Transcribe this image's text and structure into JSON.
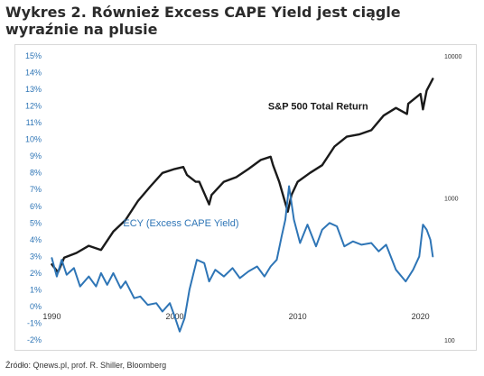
{
  "title": "Wykres 2. Również Excess CAPE Yield jest ciągle wyraźnie na plusie",
  "source": "Źródło: Qnews.pl, prof. R. Shiller, Bloomberg",
  "colors": {
    "sp500": "#1a1a1a",
    "ecy": "#2e75b6",
    "left_axis_text": "#2e75b6",
    "right_axis_text": "#333333"
  },
  "chart_data": {
    "type": "line",
    "title": "",
    "xlabel": "",
    "ylabel": "",
    "x_ticks": [
      "1990",
      "2000",
      "2010",
      "2020"
    ],
    "xlim": [
      1989.6,
      2021.2
    ],
    "y_left": {
      "ticks": [
        "15%",
        "14%",
        "13%",
        "12%",
        "11%",
        "10%",
        "9%",
        "8%",
        "7%",
        "6%",
        "5%",
        "4%",
        "3%",
        "2%",
        "1%",
        "0%",
        "-1%",
        "-2%"
      ],
      "ylim": [
        -2,
        15
      ]
    },
    "y_right": {
      "ticks": [
        "10000",
        "1000",
        "100"
      ],
      "scale": "log",
      "ylim": [
        100,
        10000
      ]
    },
    "series": [
      {
        "name": "S&P 500 Total Return",
        "axis": "right",
        "color": "#1a1a1a",
        "label_year": 2007.6,
        "label_value": 4200,
        "x": [
          1990,
          1990.5,
          1991,
          1992,
          1993,
          1994,
          1995,
          1996,
          1997,
          1998,
          1999,
          2000,
          2000.7,
          2001,
          2001.7,
          2002,
          2002.8,
          2003,
          2004,
          2005,
          2006,
          2007,
          2007.8,
          2008,
          2008.5,
          2009.2,
          2009.5,
          2010,
          2011,
          2012,
          2013,
          2014,
          2015,
          2016,
          2017,
          2018,
          2018.9,
          2019,
          2020,
          2020.2,
          2020.5,
          2021
        ],
        "y": [
          340,
          300,
          380,
          410,
          460,
          430,
          580,
          700,
          950,
          1200,
          1500,
          1600,
          1650,
          1450,
          1300,
          1300,
          900,
          1050,
          1300,
          1400,
          1600,
          1850,
          1950,
          1700,
          1300,
          800,
          1050,
          1300,
          1500,
          1700,
          2300,
          2700,
          2800,
          3000,
          3800,
          4300,
          3900,
          4600,
          5400,
          4200,
          5700,
          6900
        ]
      },
      {
        "name": "ECY (Excess CAPE Yield)",
        "axis": "left",
        "color": "#2e75b6",
        "label_year": 1995.8,
        "label_value": 4.8,
        "x": [
          1990,
          1990.4,
          1990.8,
          1991.2,
          1991.8,
          1992.3,
          1993,
          1993.6,
          1994,
          1994.5,
          1995,
          1995.6,
          1996,
          1996.7,
          1997.2,
          1997.8,
          1998.5,
          1999,
          1999.6,
          2000,
          2000.4,
          2000.8,
          2001.2,
          2001.8,
          2002.4,
          2002.8,
          2003.3,
          2004,
          2004.7,
          2005.3,
          2006,
          2006.7,
          2007.3,
          2007.8,
          2008.3,
          2008.7,
          2009.0,
          2009.3,
          2009.7,
          2010.2,
          2010.8,
          2011.5,
          2012,
          2012.6,
          2013.2,
          2013.8,
          2014.5,
          2015.2,
          2016,
          2016.6,
          2017.2,
          2018,
          2018.8,
          2019.4,
          2019.9,
          2020.2,
          2020.5,
          2020.8,
          2021
        ],
        "y": [
          2.9,
          1.8,
          2.8,
          1.9,
          2.3,
          1.2,
          1.8,
          1.2,
          2.0,
          1.3,
          2.0,
          1.1,
          1.5,
          0.5,
          0.6,
          0.1,
          0.2,
          -0.3,
          0.2,
          -0.6,
          -1.5,
          -0.7,
          1.0,
          2.8,
          2.6,
          1.5,
          2.2,
          1.8,
          2.3,
          1.7,
          2.1,
          2.4,
          1.8,
          2.4,
          2.8,
          4.2,
          5.2,
          7.2,
          5.2,
          3.8,
          4.9,
          3.6,
          4.6,
          5.0,
          4.8,
          3.6,
          3.9,
          3.7,
          3.8,
          3.3,
          3.7,
          2.2,
          1.5,
          2.2,
          3.0,
          4.9,
          4.6,
          4.0,
          3.0
        ]
      }
    ],
    "grid": false,
    "legend": "inline"
  }
}
